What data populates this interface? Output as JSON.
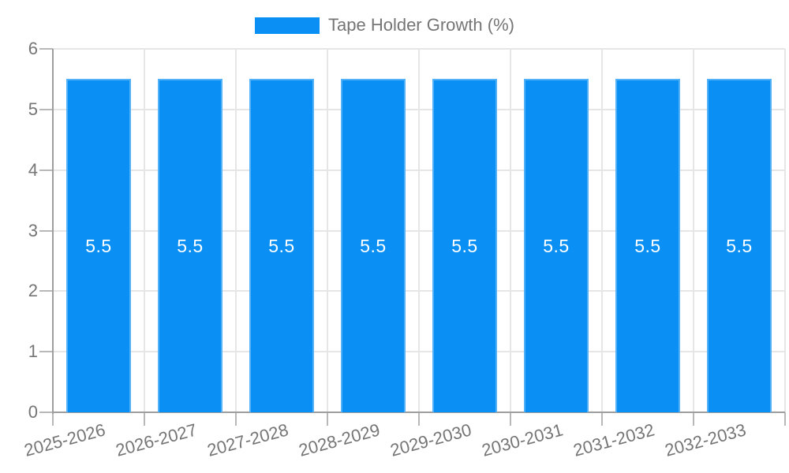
{
  "legend": {
    "series_label": "Tape Holder Growth (%)"
  },
  "chart_data": {
    "type": "bar",
    "title": "Tape Holder Growth (%)",
    "categories": [
      "2025-2026",
      "2026-2027",
      "2027-2028",
      "2028-2029",
      "2029-2030",
      "2030-2031",
      "2031-2032",
      "2032-2033"
    ],
    "values": [
      5.5,
      5.5,
      5.5,
      5.5,
      5.5,
      5.5,
      5.5,
      5.5
    ],
    "value_labels": [
      "5.5",
      "5.5",
      "5.5",
      "5.5",
      "5.5",
      "5.5",
      "5.5",
      "5.5"
    ],
    "xlabel": "",
    "ylabel": "",
    "ylim": [
      0,
      6
    ],
    "yticks": [
      "0",
      "1",
      "2",
      "3",
      "4",
      "5",
      "6"
    ],
    "grid": true,
    "legend_position": "top",
    "colors": {
      "bar": "#0A90F5",
      "bar_label": "#FFFFFF",
      "axis": "#9E9E9E",
      "gridline": "#E6E6E6",
      "tick": "#B8B8B8",
      "label_text": "#757575"
    }
  }
}
